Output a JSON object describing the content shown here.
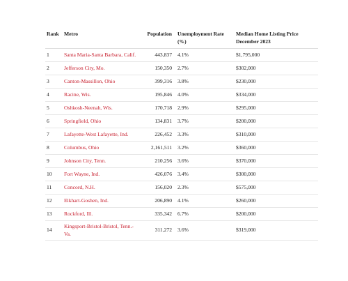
{
  "table": {
    "header": [
      "Rank",
      "Metro",
      "Population",
      "Unemployment Rate (%)",
      "Median Home Listing Price December 2023"
    ],
    "rows": [
      [
        "1",
        "Santa Maria-Santa Barbara, Calif.",
        "443,837",
        "4.1%",
        "$1,795,000"
      ],
      [
        "2",
        "Jefferson City, Mo.",
        "150,350",
        "2.7%",
        "$302,000"
      ],
      [
        "3",
        "Canton-Massillon, Ohio",
        "399,316",
        "3.8%",
        "$230,000"
      ],
      [
        "4",
        "Racine, Wis.",
        "195,846",
        "4.0%",
        "$334,000"
      ],
      [
        "5",
        "Oshkosh-Neenah, Wis.",
        "170,718",
        "2.9%",
        "$295,000"
      ],
      [
        "6",
        "Springfield, Ohio",
        "134,831",
        "3.7%",
        "$200,000"
      ],
      [
        "7",
        "Lafayette-West Lafayette, Ind.",
        "226,452",
        "3.3%",
        "$310,000"
      ],
      [
        "8",
        "Columbus, Ohio",
        "2,161,511",
        "3.2%",
        "$360,000"
      ],
      [
        "9",
        "Johnson City, Tenn.",
        "210,256",
        "3.6%",
        "$370,000"
      ],
      [
        "10",
        "Fort Wayne, Ind.",
        "426,076",
        "3.4%",
        "$300,000"
      ],
      [
        "11",
        "Concord, N.H.",
        "156,020",
        "2.3%",
        "$575,000"
      ],
      [
        "12",
        "Elkhart-Goshen, Ind.",
        "206,890",
        "4.1%",
        "$260,000"
      ],
      [
        "13",
        "Rockford, Ill.",
        "335,342",
        "6.7%",
        "$200,000"
      ],
      [
        "14",
        "Kingsport-Bristol-Bristol, Tenn.-Va.",
        "311,272",
        "3.6%",
        "$319,000"
      ]
    ]
  }
}
